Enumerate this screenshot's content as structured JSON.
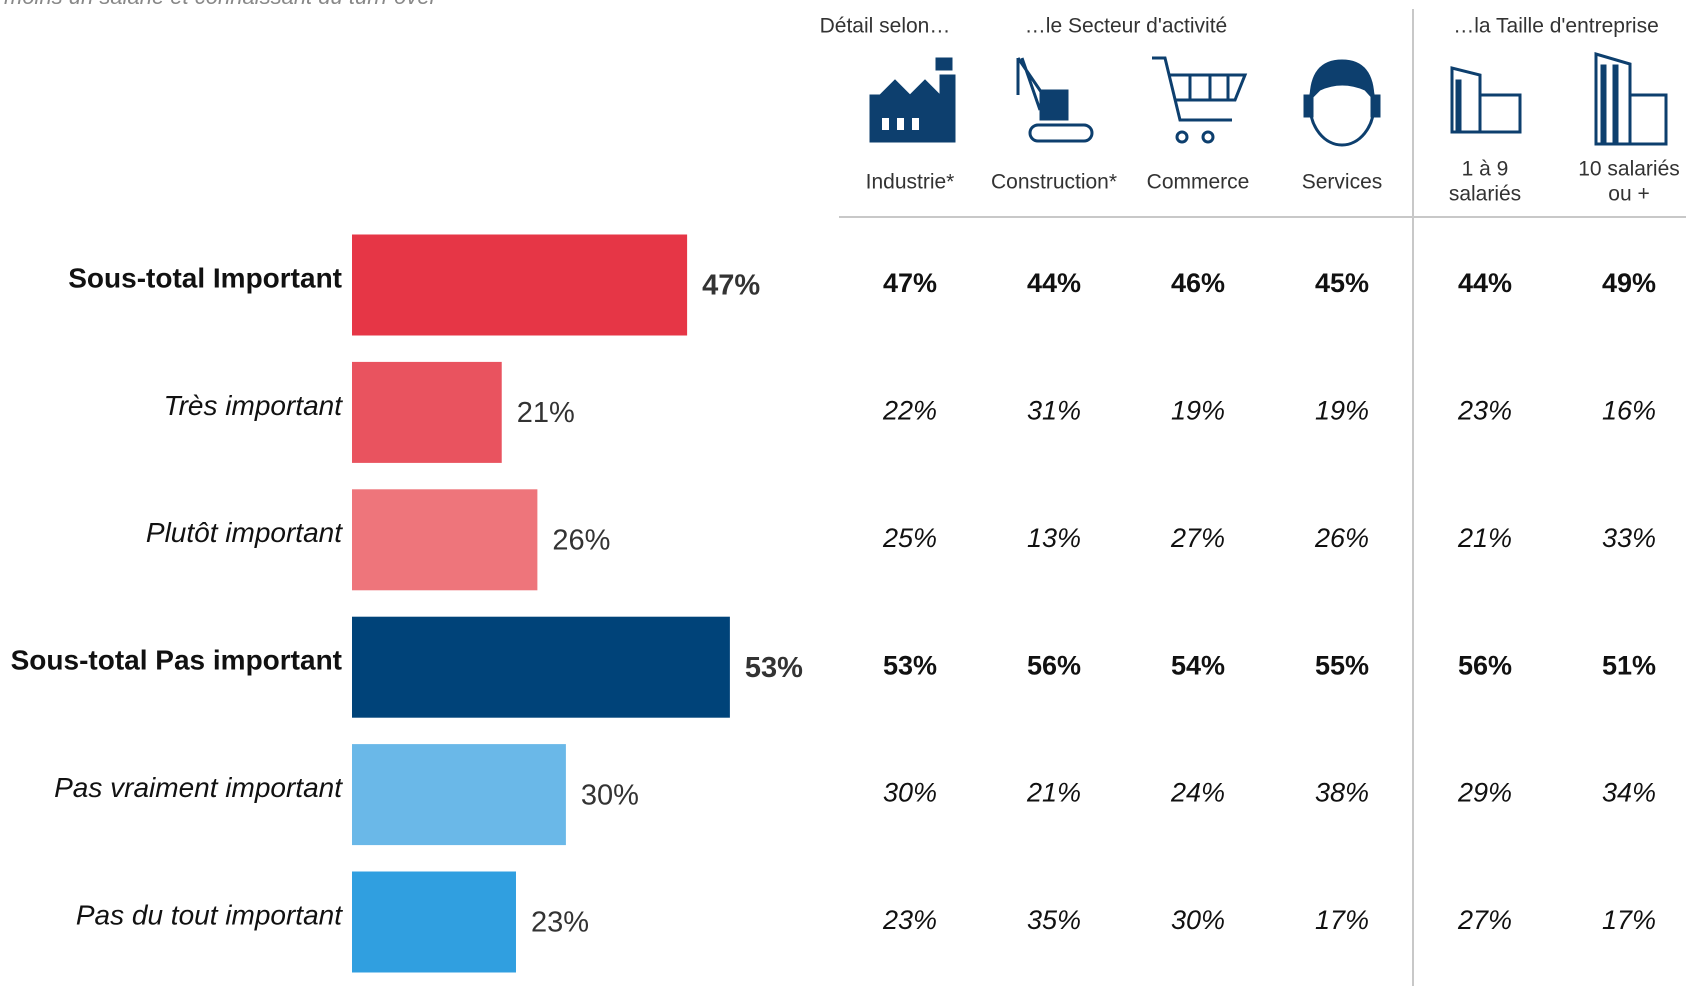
{
  "subtitle": "moins un salarié et connaissant du turn-over",
  "chart_data": {
    "type": "bar",
    "orientation": "horizontal",
    "categories": [
      "Sous-total Important",
      "Très important",
      "Plutôt important",
      "Sous-total Pas important",
      "Pas vraiment important",
      "Pas du tout important"
    ],
    "values": [
      47,
      21,
      26,
      53,
      30,
      23
    ],
    "value_labels": [
      "47%",
      "21%",
      "26%",
      "53%",
      "30%",
      "23%"
    ],
    "colors": [
      "#e63646",
      "#e9535f",
      "#ee757b",
      "#004379",
      "#6ab8e8",
      "#309fe0"
    ],
    "bold": [
      true,
      false,
      false,
      true,
      false,
      false
    ]
  },
  "table": {
    "group_labels": [
      "Détail selon…",
      "…le Secteur d'activité",
      "…la Taille d'entreprise"
    ],
    "columns": [
      [
        "Industrie*"
      ],
      [
        "Construction*"
      ],
      [
        "Commerce"
      ],
      [
        "Services"
      ],
      [
        "1 à 9",
        "salariés"
      ],
      [
        "10 salariés",
        "ou +"
      ]
    ],
    "rows": [
      [
        "47%",
        "44%",
        "46%",
        "45%",
        "44%",
        "49%"
      ],
      [
        "22%",
        "31%",
        "19%",
        "19%",
        "23%",
        "16%"
      ],
      [
        "25%",
        "13%",
        "27%",
        "26%",
        "21%",
        "33%"
      ],
      [
        "53%",
        "56%",
        "54%",
        "55%",
        "56%",
        "51%"
      ],
      [
        "30%",
        "21%",
        "24%",
        "38%",
        "29%",
        "34%"
      ],
      [
        "23%",
        "35%",
        "30%",
        "17%",
        "27%",
        "17%"
      ]
    ]
  }
}
